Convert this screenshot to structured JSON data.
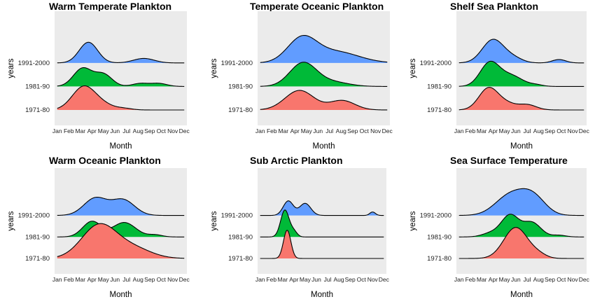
{
  "chart_data": [
    {
      "type": "ridgeline",
      "title": "Warm Temperate Plankton",
      "xlabel": "Month",
      "ylabel": "years",
      "months": [
        "Jan",
        "Feb",
        "Mar",
        "Apr",
        "May",
        "Jun",
        "Jul",
        "Aug",
        "Sep",
        "Oct",
        "Nov",
        "Dec"
      ],
      "series": [
        {
          "name": "1971-80",
          "color": "#F8766D",
          "peaks": [
            [
              3.3,
              0.62,
              1.0
            ],
            [
              5.0,
              0.12,
              0.9
            ],
            [
              6.8,
              0.04,
              0.7
            ]
          ]
        },
        {
          "name": "1981-90",
          "color": "#00BA38",
          "peaks": [
            [
              3.2,
              0.48,
              0.8
            ],
            [
              5.0,
              0.32,
              0.75
            ],
            [
              8.2,
              0.08,
              0.7
            ],
            [
              9.8,
              0.08,
              0.7
            ]
          ]
        },
        {
          "name": "1991-2000",
          "color": "#619CFF",
          "peaks": [
            [
              3.7,
              0.55,
              0.8
            ],
            [
              8.5,
              0.12,
              0.9
            ]
          ]
        }
      ]
    },
    {
      "type": "ridgeline",
      "title": "Temperate Oceanic Plankton",
      "xlabel": "Month",
      "ylabel": "years",
      "months": [
        "Jan",
        "Feb",
        "Mar",
        "Apr",
        "May",
        "Jun",
        "Jul",
        "Aug",
        "Sep",
        "Oct",
        "Nov",
        "Dec"
      ],
      "series": [
        {
          "name": "1971-80",
          "color": "#F8766D",
          "peaks": [
            [
              4.4,
              0.52,
              1.25
            ],
            [
              8.1,
              0.25,
              1.1
            ]
          ]
        },
        {
          "name": "1981-90",
          "color": "#00BA38",
          "peaks": [
            [
              4.7,
              0.62,
              1.15
            ],
            [
              7.2,
              0.12,
              1.4
            ]
          ]
        },
        {
          "name": "1991-2000",
          "color": "#619CFF",
          "peaks": [
            [
              4.6,
              0.62,
              1.25
            ],
            [
              7.5,
              0.3,
              2.0
            ]
          ]
        }
      ]
    },
    {
      "type": "ridgeline",
      "title": "Shelf Sea Plankton",
      "xlabel": "Month",
      "ylabel": "years",
      "months": [
        "Jan",
        "Feb",
        "Mar",
        "Apr",
        "May",
        "Jun",
        "Jul",
        "Aug",
        "Sep",
        "Oct",
        "Nov",
        "Dec"
      ],
      "series": [
        {
          "name": "1971-80",
          "color": "#F8766D",
          "peaks": [
            [
              3.6,
              0.58,
              0.85
            ],
            [
              5.2,
              0.15,
              0.8
            ],
            [
              7.0,
              0.14,
              0.8
            ]
          ]
        },
        {
          "name": "1981-90",
          "color": "#00BA38",
          "peaks": [
            [
              3.7,
              0.62,
              0.85
            ],
            [
              5.6,
              0.28,
              1.0
            ],
            [
              7.8,
              0.04,
              0.6
            ]
          ]
        },
        {
          "name": "1991-2000",
          "color": "#619CFF",
          "peaks": [
            [
              4.0,
              0.62,
              0.95
            ],
            [
              5.8,
              0.12,
              0.8
            ],
            [
              9.8,
              0.09,
              0.6
            ]
          ]
        }
      ]
    },
    {
      "type": "ridgeline",
      "title": "Warm Oceanic Plankton",
      "xlabel": "Month",
      "ylabel": "years",
      "months": [
        "Jan",
        "Feb",
        "Mar",
        "Apr",
        "May",
        "Jun",
        "Jul",
        "Aug",
        "Sep",
        "Oct",
        "Nov",
        "Dec"
      ],
      "series": [
        {
          "name": "1971-80",
          "color": "#F8766D",
          "peaks": [
            [
              4.6,
              0.95,
              1.5
            ],
            [
              7.5,
              0.3,
              1.6
            ]
          ]
        },
        {
          "name": "1981-90",
          "color": "#00BA38",
          "peaks": [
            [
              4.0,
              0.45,
              0.8
            ],
            [
              6.8,
              0.42,
              1.0
            ],
            [
              9.5,
              0.06,
              0.6
            ]
          ]
        },
        {
          "name": "1991-2000",
          "color": "#619CFF",
          "peaks": [
            [
              4.3,
              0.5,
              1.0
            ],
            [
              6.7,
              0.45,
              1.0
            ]
          ]
        }
      ]
    },
    {
      "type": "ridgeline",
      "title": "Sub Arctic  Plankton",
      "xlabel": "Month",
      "ylabel": "years",
      "months": [
        "Jan",
        "Feb",
        "Mar",
        "Apr",
        "May",
        "Jun",
        "Jul",
        "Aug",
        "Sep",
        "Oct",
        "Nov",
        "Dec"
      ],
      "series": [
        {
          "name": "1971-80",
          "color": "#F8766D",
          "peaks": [
            [
              3.4,
              0.82,
              0.33
            ]
          ]
        },
        {
          "name": "1981-90",
          "color": "#00BA38",
          "peaks": [
            [
              3.2,
              0.78,
              0.38
            ],
            [
              4.0,
              0.15,
              0.3
            ]
          ]
        },
        {
          "name": "1991-2000",
          "color": "#619CFF",
          "peaks": [
            [
              3.5,
              0.42,
              0.45
            ],
            [
              5.0,
              0.35,
              0.5
            ],
            [
              11.0,
              0.1,
              0.25
            ]
          ]
        }
      ]
    },
    {
      "type": "ridgeline",
      "title": "Sea Surface Temperature",
      "xlabel": "Month",
      "ylabel": "years",
      "months": [
        "Jan",
        "Feb",
        "Mar",
        "Apr",
        "May",
        "Jun",
        "Jul",
        "Aug",
        "Sep",
        "Oct",
        "Nov",
        "Dec"
      ],
      "series": [
        {
          "name": "1971-80",
          "color": "#F8766D",
          "peaks": [
            [
              6.0,
              0.9,
              1.05
            ],
            [
              8.0,
              0.1,
              0.7
            ]
          ]
        },
        {
          "name": "1981-90",
          "color": "#00BA38",
          "peaks": [
            [
              3.9,
              0.12,
              0.8
            ],
            [
              5.5,
              0.62,
              0.75
            ],
            [
              7.4,
              0.42,
              0.8
            ],
            [
              9.8,
              0.05,
              0.6
            ]
          ]
        },
        {
          "name": "1991-2000",
          "color": "#619CFF",
          "peaks": [
            [
              5.5,
              0.58,
              1.3
            ],
            [
              7.5,
              0.52,
              1.1
            ]
          ]
        }
      ]
    }
  ]
}
